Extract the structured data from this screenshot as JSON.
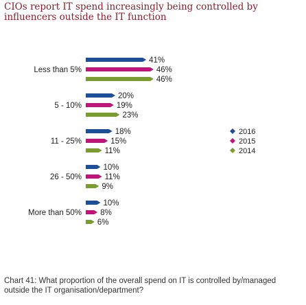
{
  "title": "CIOs report IT spend increasingly being controlled by influencers outside the IT function",
  "caption": "Chart 41: What proportion of the overall spend on IT is controlled by/managed outside the IT organisation/department?",
  "colors": {
    "2016": "#1b4f9c",
    "2015": "#c0147a",
    "2014": "#7a9e2e",
    "title": "#8a1d2b"
  },
  "chart_data": {
    "type": "bar",
    "orientation": "horizontal",
    "categories": [
      "Less than 5%",
      "5 - 10%",
      "11 - 25%",
      "26 - 50%",
      "More than 50%"
    ],
    "series": [
      {
        "name": "2016",
        "values": [
          41,
          20,
          18,
          10,
          10
        ],
        "labels": [
          "41%",
          "20%",
          "18%",
          "10%",
          "10%"
        ]
      },
      {
        "name": "2015",
        "values": [
          46,
          19,
          15,
          11,
          8
        ],
        "labels": [
          "46%",
          "19%",
          "15%",
          "11%",
          "8%"
        ]
      },
      {
        "name": "2014",
        "values": [
          46,
          23,
          11,
          9,
          6
        ],
        "labels": [
          "46%",
          "23%",
          "11%",
          "9%",
          "6%"
        ]
      }
    ],
    "legend": {
      "position": "right",
      "entries": [
        "2016",
        "2015",
        "2014"
      ]
    },
    "xlim": [
      0,
      50
    ],
    "grid": false
  }
}
